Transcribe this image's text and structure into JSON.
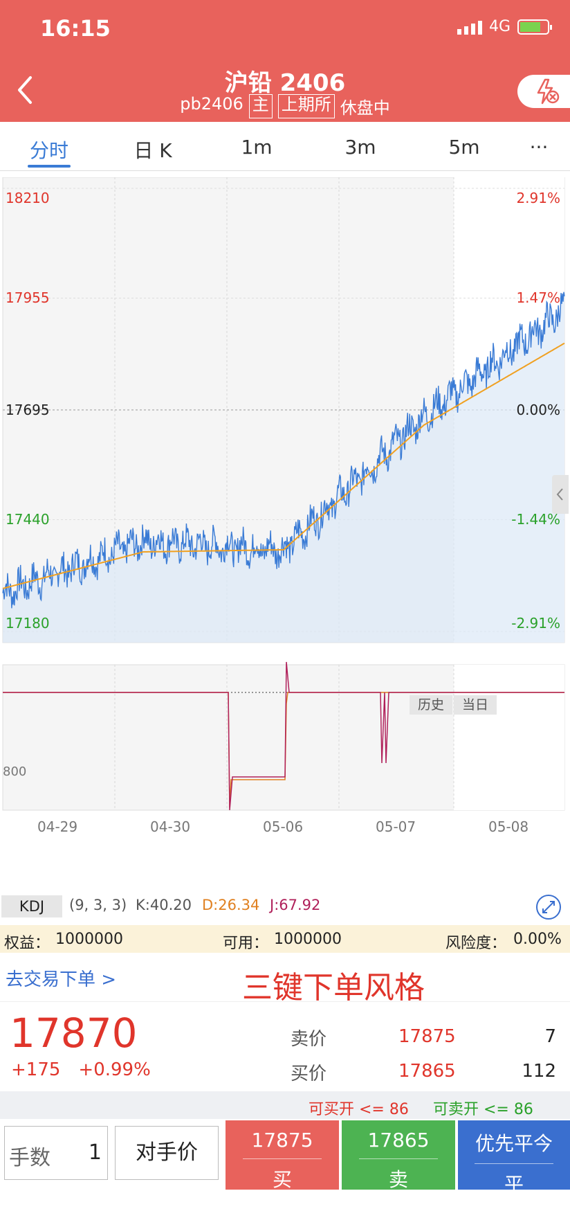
{
  "status": {
    "time": "16:15",
    "network": "4G"
  },
  "header": {
    "title": "沪铅 2406",
    "code": "pb2406",
    "tag_main": "主",
    "tag_exchange": "上期所",
    "market_status": "休盘中"
  },
  "tabs": [
    {
      "label": "分时"
    },
    {
      "label": "日 K"
    },
    {
      "label": "1m"
    },
    {
      "label": "3m"
    },
    {
      "label": "5m"
    },
    {
      "label": "···"
    }
  ],
  "chart": {
    "price_labels": [
      "18210",
      "17955",
      "17695",
      "17440",
      "17180"
    ],
    "pct_labels": [
      "2.91%",
      "1.47%",
      "0.00%",
      "-1.44%",
      "-2.91%"
    ],
    "history_btn": "历史",
    "today_btn": "当日",
    "dates": [
      "04-29",
      "04-30",
      "05-06",
      "05-07",
      "05-08"
    ],
    "kdj_name": "KDJ",
    "kdj_params": "(9, 3, 3)",
    "kdj_k": "K:40.20",
    "kdj_d": "D:26.34",
    "kdj_j": "J:67.92",
    "kdj_axis_label": "800",
    "colors": {
      "price_line": "#3a7bd5",
      "avg_line": "#f0a020",
      "up": "#e0352b",
      "down": "#2aa12a",
      "k": "#555577",
      "d": "#e08020",
      "j": "#b0205a"
    }
  },
  "chart_data": {
    "type": "line",
    "title": "",
    "x": [
      "04-29",
      "04-30",
      "05-06",
      "05-07",
      "05-08"
    ],
    "ylim": [
      17180,
      18210
    ],
    "reference_price": 17695,
    "series": [
      {
        "name": "",
        "values": [
          17270,
          17390,
          17370,
          17680,
          17930
        ]
      },
      {
        "name": "",
        "values": [
          17280,
          17365,
          17370,
          17660,
          17850
        ]
      }
    ],
    "last_value": 17870,
    "grid": true,
    "legend": "none"
  },
  "account": {
    "equity_label": "权益：",
    "equity": "1000000",
    "available_label": "可用：",
    "available": "1000000",
    "risk_label": "风险度：",
    "risk": "0.00%"
  },
  "trade": {
    "link": "去交易下单 >",
    "style_label": "三键下单风格"
  },
  "quote": {
    "last": "17870",
    "change": "+175",
    "change_pct": "+0.99%",
    "ask_label": "卖价",
    "ask_price": "17875",
    "ask_vol": "7",
    "bid_label": "买价",
    "bid_price": "17865",
    "bid_vol": "112"
  },
  "limits": {
    "buy_open": "可买开 <= 86",
    "sell_open": "可卖开 <= 86"
  },
  "order": {
    "qty_label": "手数",
    "qty": "1",
    "price_type": "对手价",
    "buy_price": "17875",
    "buy_label": "买",
    "sell_price": "17865",
    "sell_label": "卖",
    "close_top": "优先平今",
    "close_label": "平",
    "colors": {
      "buy": "#e8625c",
      "sell": "#4db352",
      "close": "#3a6fcf"
    }
  }
}
